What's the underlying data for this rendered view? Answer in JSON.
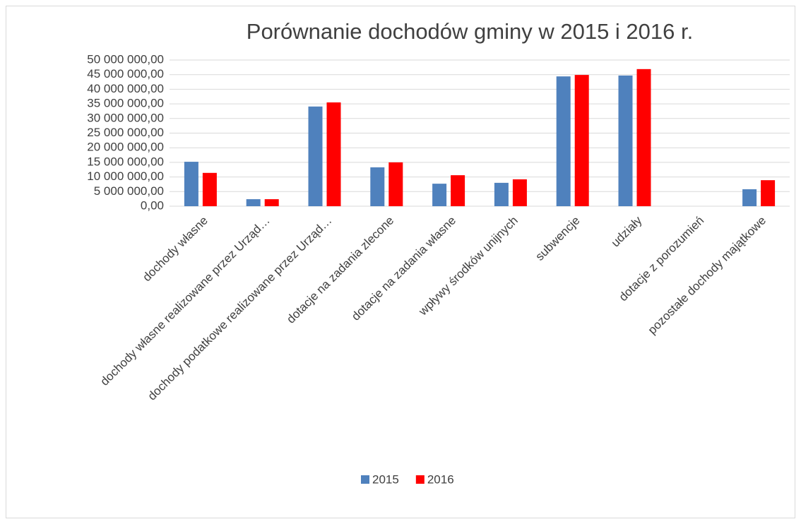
{
  "chart_data": {
    "type": "bar",
    "title": "Porównanie dochodów gminy w 2015 i 2016 r.",
    "categories": [
      "dochody własne",
      "dochody własne realizowane przez Urząd…",
      "dochody podatkowe realizowane przez Urząd…",
      "dotacje na zadania zlecone",
      "dotacje na zadania własne",
      "wpływy środków unijnych",
      "subwencje",
      "udziały",
      "dotacje z porozumień",
      "pozostałe dochody majątkowe"
    ],
    "series": [
      {
        "name": "2015",
        "color": "#4f81bd",
        "values": [
          15200000,
          2400000,
          34100000,
          13300000,
          7700000,
          8000000,
          44400000,
          44700000,
          0,
          5800000
        ]
      },
      {
        "name": "2016",
        "color": "#ff0000",
        "values": [
          11400000,
          2400000,
          35500000,
          15000000,
          10600000,
          9200000,
          44900000,
          46900000,
          0,
          8900000
        ]
      }
    ],
    "ylim": [
      0,
      50000000
    ],
    "yticks": [
      {
        "value": 0,
        "label": "0,00"
      },
      {
        "value": 5000000,
        "label": "5 000 000,00"
      },
      {
        "value": 10000000,
        "label": "10 000 000,00"
      },
      {
        "value": 15000000,
        "label": "15 000 000,00"
      },
      {
        "value": 20000000,
        "label": "20 000 000,00"
      },
      {
        "value": 25000000,
        "label": "25 000 000,00"
      },
      {
        "value": 30000000,
        "label": "30 000 000,00"
      },
      {
        "value": 35000000,
        "label": "35 000 000,00"
      },
      {
        "value": 40000000,
        "label": "40 000 000,00"
      },
      {
        "value": 45000000,
        "label": "45 000 000,00"
      },
      {
        "value": 50000000,
        "label": "50 000 000,00"
      }
    ],
    "grid": true,
    "legend": "bottom"
  }
}
